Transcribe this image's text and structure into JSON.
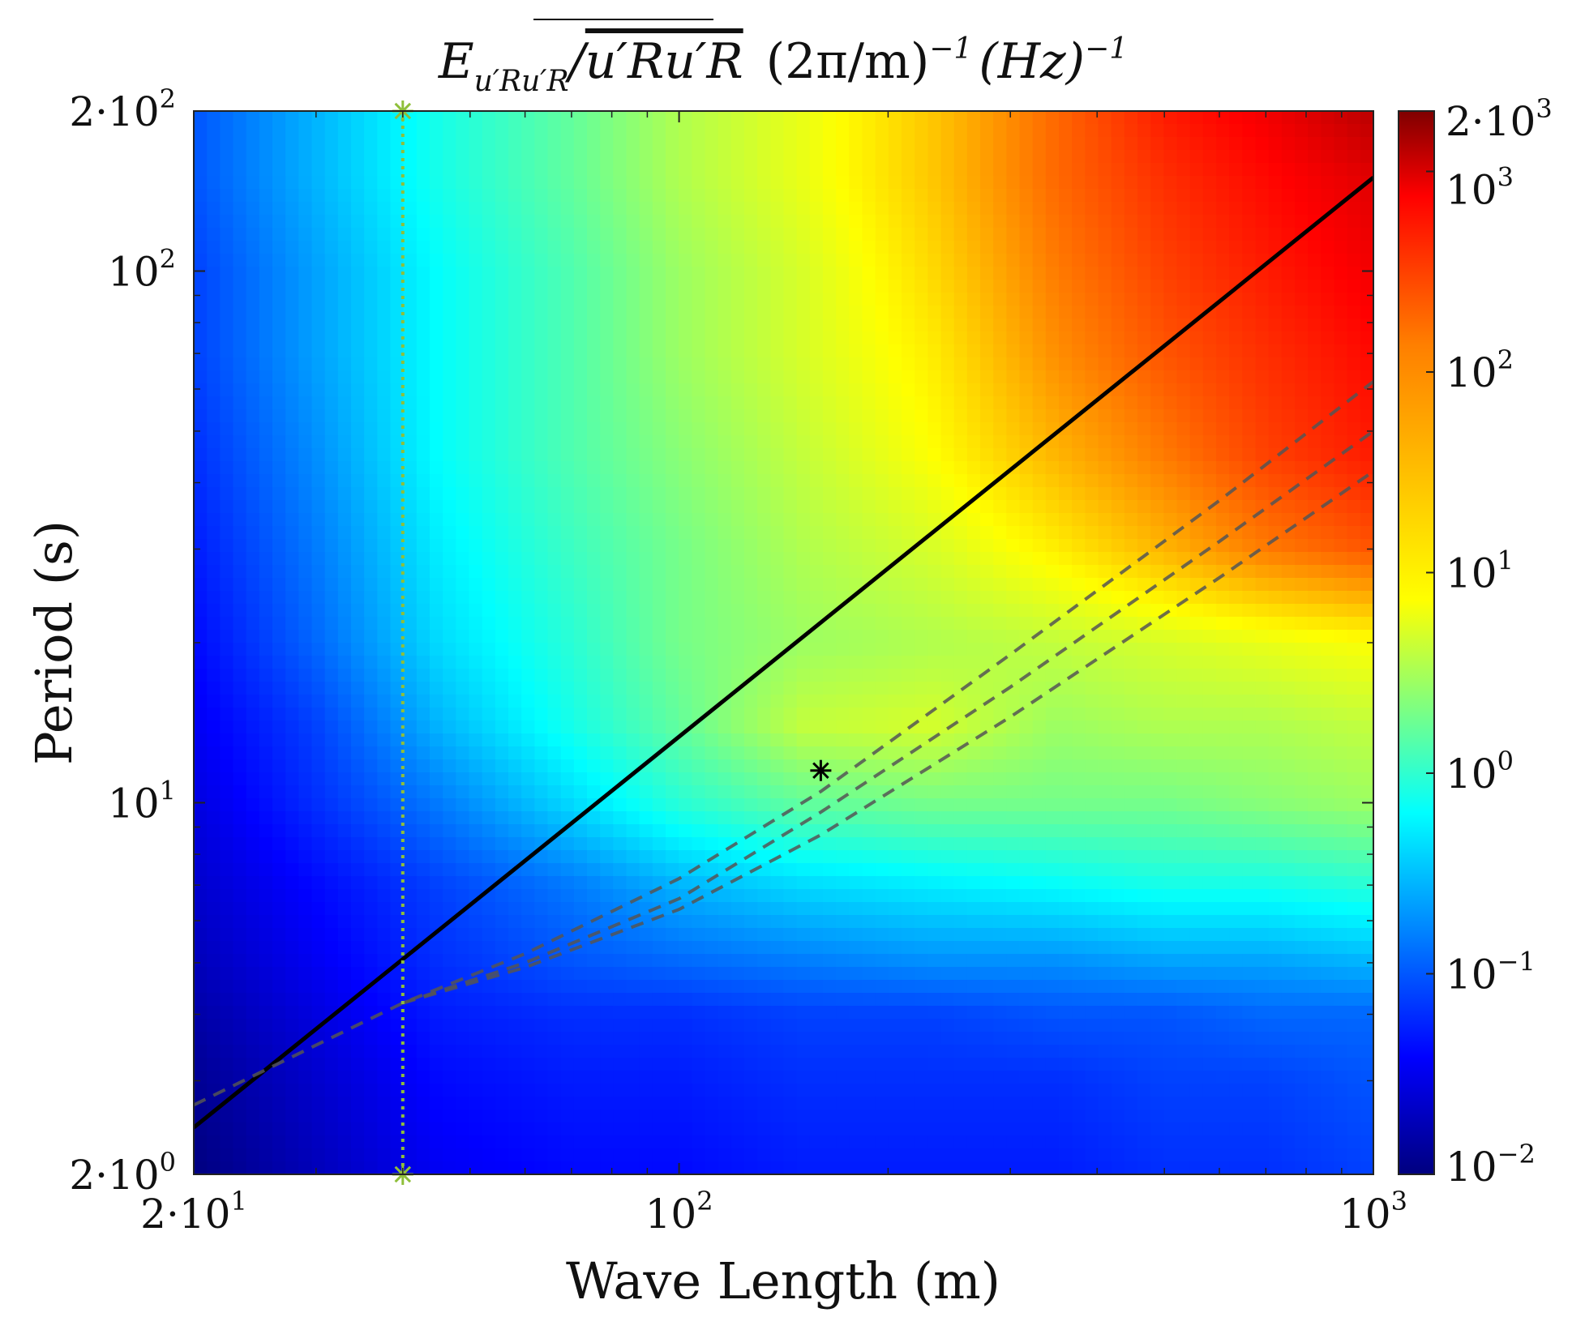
{
  "chart_data": {
    "type": "heatmap",
    "title": {
      "main": "E",
      "subscript": "u′Ru′R",
      "divider": "/",
      "overline": "u′Ru′R",
      "units1": "(2π/m)",
      "units1_exp": "−1",
      "units2": "(Hz)",
      "units2_exp": "−1"
    },
    "xlabel": "Wave Length (m)",
    "ylabel": "Period (s)",
    "x_scale": "log",
    "y_scale": "log",
    "xlim": [
      20,
      1000
    ],
    "ylim": [
      2,
      200
    ],
    "x_ticks": [
      {
        "value": 20,
        "base": "2·10",
        "exp": "1"
      },
      {
        "value": 100,
        "base": "10",
        "exp": "2"
      },
      {
        "value": 1000,
        "base": "10",
        "exp": "3"
      }
    ],
    "y_ticks": [
      {
        "value": 2,
        "base": "2·10",
        "exp": "0"
      },
      {
        "value": 10,
        "base": "10",
        "exp": "1"
      },
      {
        "value": 100,
        "base": "10",
        "exp": "2"
      },
      {
        "value": 200,
        "base": "2·10",
        "exp": "2"
      }
    ],
    "colorbar": {
      "scale": "log",
      "range": [
        0.01,
        2000
      ],
      "ticks": [
        {
          "value": 0.01,
          "base": "10",
          "exp": "−2"
        },
        {
          "value": 0.1,
          "base": "10",
          "exp": "−1"
        },
        {
          "value": 1,
          "base": "10",
          "exp": "0"
        },
        {
          "value": 10,
          "base": "10",
          "exp": "1"
        },
        {
          "value": 100,
          "base": "10",
          "exp": "2"
        },
        {
          "value": 1000,
          "base": "10",
          "exp": "3"
        },
        {
          "value": 2000,
          "base": "2·10",
          "exp": "3"
        }
      ],
      "colormap": "jet"
    },
    "heatmap_field": {
      "description_levels": "log10 energy values at sampled (wavelength m, period s) nodes",
      "wavelengths": [
        20,
        30,
        45,
        70,
        100,
        150,
        230,
        350,
        500,
        700,
        1000
      ],
      "periods": [
        2,
        3,
        4,
        5,
        7,
        10,
        14,
        20,
        30,
        45,
        70,
        100,
        150,
        200
      ],
      "log10_values": [
        [
          -2.0,
          -1.7,
          -1.4,
          -1.3,
          -1.3,
          -1.2,
          -1.2,
          -1.2,
          -1.1,
          -1.1,
          -1.0
        ],
        [
          -1.9,
          -1.6,
          -1.3,
          -1.2,
          -1.2,
          -1.1,
          -1.1,
          -1.1,
          -1.0,
          -1.0,
          -0.9
        ],
        [
          -1.8,
          -1.5,
          -1.2,
          -1.1,
          -1.1,
          -1.0,
          -1.0,
          -0.9,
          -0.9,
          -0.8,
          -0.8
        ],
        [
          -1.7,
          -1.4,
          -1.1,
          -0.9,
          -0.8,
          -0.7,
          -0.6,
          -0.6,
          -0.5,
          -0.5,
          -0.4
        ],
        [
          -1.6,
          -1.3,
          -1.0,
          -0.7,
          -0.4,
          -0.2,
          -0.1,
          0.0,
          0.1,
          0.1,
          0.2
        ],
        [
          -1.5,
          -1.1,
          -0.7,
          -0.2,
          0.2,
          0.5,
          0.6,
          0.6,
          0.6,
          0.7,
          0.8
        ],
        [
          -1.4,
          -1.0,
          -0.4,
          0.1,
          0.5,
          1.0,
          1.1,
          0.8,
          0.9,
          0.9,
          1.0
        ],
        [
          -1.3,
          -0.8,
          -0.2,
          0.2,
          0.6,
          0.8,
          0.9,
          1.0,
          1.1,
          1.2,
          1.3
        ],
        [
          -1.2,
          -0.7,
          -0.1,
          0.3,
          0.6,
          0.9,
          1.1,
          1.4,
          1.7,
          2.0,
          2.2
        ],
        [
          -1.1,
          -0.6,
          0.0,
          0.4,
          0.7,
          1.0,
          1.3,
          1.7,
          2.0,
          2.3,
          2.5
        ],
        [
          -1.0,
          -0.5,
          0.0,
          0.4,
          0.8,
          1.1,
          1.4,
          1.9,
          2.2,
          2.4,
          2.6
        ],
        [
          -1.0,
          -0.5,
          0.0,
          0.4,
          0.8,
          1.1,
          1.5,
          2.0,
          2.3,
          2.5,
          2.7
        ],
        [
          -0.9,
          -0.4,
          0.1,
          0.5,
          0.9,
          1.2,
          1.6,
          2.1,
          2.4,
          2.6,
          2.8
        ],
        [
          -0.9,
          -0.4,
          0.1,
          0.5,
          0.9,
          1.2,
          1.6,
          2.1,
          2.5,
          2.7,
          3.0
        ]
      ]
    },
    "series": [
      {
        "name": "solid dispersion line",
        "style": "solid",
        "color": "#000000",
        "x": [
          20,
          1000
        ],
        "y": [
          2.45,
          150
        ]
      },
      {
        "name": "dashed curve 1",
        "style": "dashed",
        "color": "#555555",
        "x": [
          20,
          30,
          40,
          60,
          100,
          160,
          300,
          600,
          1000
        ],
        "y": [
          2.7,
          3.5,
          4.2,
          5.2,
          7.2,
          10.5,
          19,
          37,
          62
        ]
      },
      {
        "name": "dashed curve 2",
        "style": "dashed",
        "color": "#555555",
        "x": [
          40,
          60,
          100,
          160,
          300,
          600,
          1000
        ],
        "y": [
          4.2,
          5.0,
          6.6,
          9.6,
          16.5,
          31,
          50
        ]
      },
      {
        "name": "dashed curve 3",
        "style": "dashed",
        "color": "#555555",
        "x": [
          40,
          60,
          100,
          160,
          300,
          600,
          1000
        ],
        "y": [
          4.2,
          4.9,
          6.3,
          8.7,
          14.5,
          26.5,
          42
        ]
      },
      {
        "name": "vertical dotted marker",
        "style": "dotted",
        "color": "#8fbf3a",
        "x": [
          40,
          40
        ],
        "y": [
          2,
          200
        ]
      }
    ],
    "markers": [
      {
        "name": "peak asterisk",
        "symbol": "*",
        "color": "#000000",
        "x": 160,
        "y": 11.5
      },
      {
        "name": "top green asterisk",
        "symbol": "*",
        "color": "#8fbf3a",
        "x": 40,
        "y": 200
      },
      {
        "name": "bottom green asterisk",
        "symbol": "*",
        "color": "#8fbf3a",
        "x": 40,
        "y": 2
      }
    ]
  }
}
